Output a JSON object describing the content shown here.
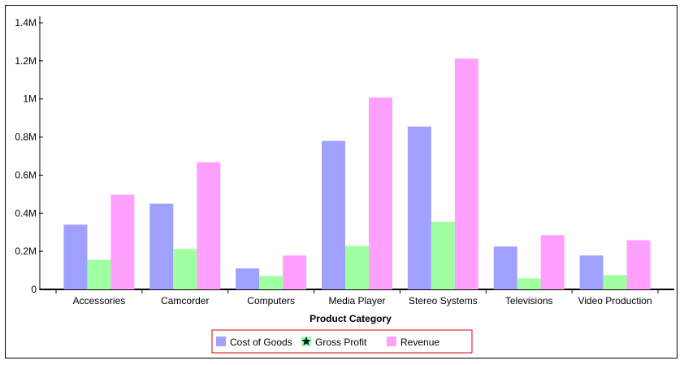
{
  "chart_data": {
    "type": "bar",
    "title": "",
    "xlabel": "Product Category",
    "ylabel": "",
    "categories": [
      "Accessories",
      "Camcorder",
      "Computers",
      "Media Player",
      "Stereo Systems",
      "Televisions",
      "Video Production"
    ],
    "series": [
      {
        "name": "Cost of Goods",
        "color": "#a0a0ff",
        "values": [
          340000,
          450000,
          110000,
          780000,
          855000,
          225000,
          178000
        ]
      },
      {
        "name": "Gross Profit",
        "color": "#a0ffa0",
        "values": [
          155000,
          212000,
          70000,
          228000,
          355000,
          58000,
          75000
        ]
      },
      {
        "name": "Revenue",
        "color": "#ffa0ff",
        "values": [
          497000,
          668000,
          178000,
          1008000,
          1212000,
          285000,
          258000
        ]
      }
    ],
    "ylim": [
      0,
      1400000
    ],
    "yticks": [
      0,
      200000,
      400000,
      600000,
      800000,
      1000000,
      1200000,
      1400000
    ],
    "ytick_labels": [
      "0",
      "0.2M",
      "0.4M",
      "0.6M",
      "0.8M",
      "1M",
      "1.2M",
      "1.4M"
    ],
    "grid": false,
    "legend_position": "bottom-center",
    "legend_border_color": "#e00000"
  }
}
